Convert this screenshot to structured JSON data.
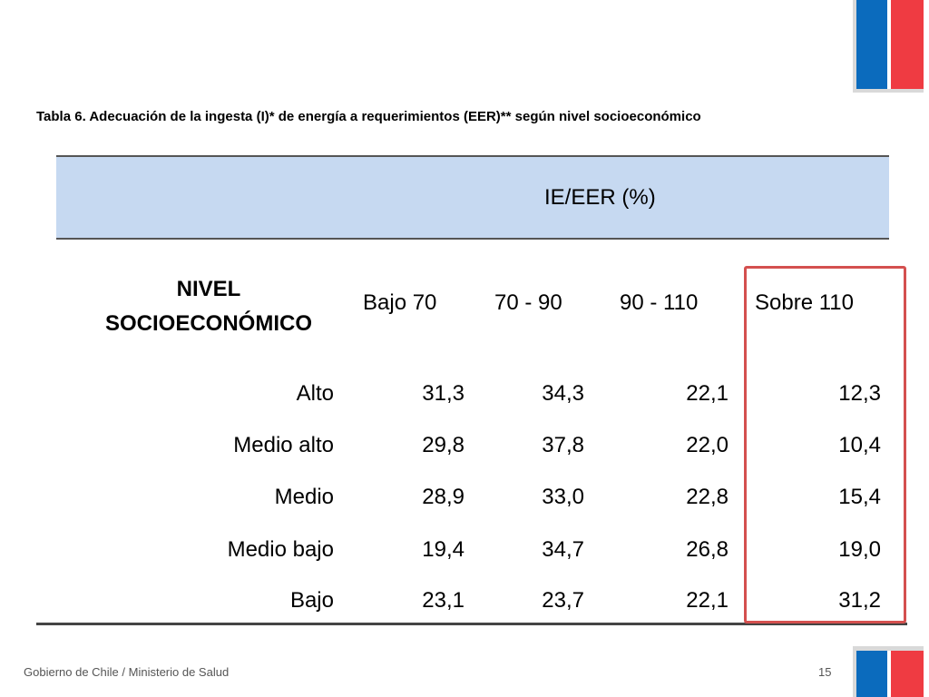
{
  "title": "Tabla 6. Adecuación de la ingesta (I)* de energía a requerimientos (EER)** según nivel socioeconómico",
  "table": {
    "group_header": "IE/EER (%)",
    "row_header": "NIVEL SOCIOECONÓMICO",
    "columns": [
      "Bajo 70",
      "70 - 90",
      "90 - 110",
      "Sobre 110"
    ],
    "rows": [
      {
        "label": "Alto",
        "values": [
          "31,3",
          "34,3",
          "22,1",
          "12,3"
        ]
      },
      {
        "label": "Medio alto",
        "values": [
          "29,8",
          "37,8",
          "22,0",
          "10,4"
        ]
      },
      {
        "label": "Medio",
        "values": [
          "28,9",
          "33,0",
          "22,8",
          "15,4"
        ]
      },
      {
        "label": "Medio bajo",
        "values": [
          "19,4",
          "34,7",
          "26,8",
          "19,0"
        ]
      },
      {
        "label": "Bajo",
        "values": [
          "23,1",
          "23,7",
          "22,1",
          "31,2"
        ]
      }
    ]
  },
  "footer": {
    "text": "Gobierno de Chile / Ministerio de Salud",
    "page": "15"
  },
  "colors": {
    "header_band": "#c6d9f1",
    "highlight": "#d4504f",
    "logo_blue": "#0b6bbd",
    "logo_red": "#ef3b42"
  }
}
